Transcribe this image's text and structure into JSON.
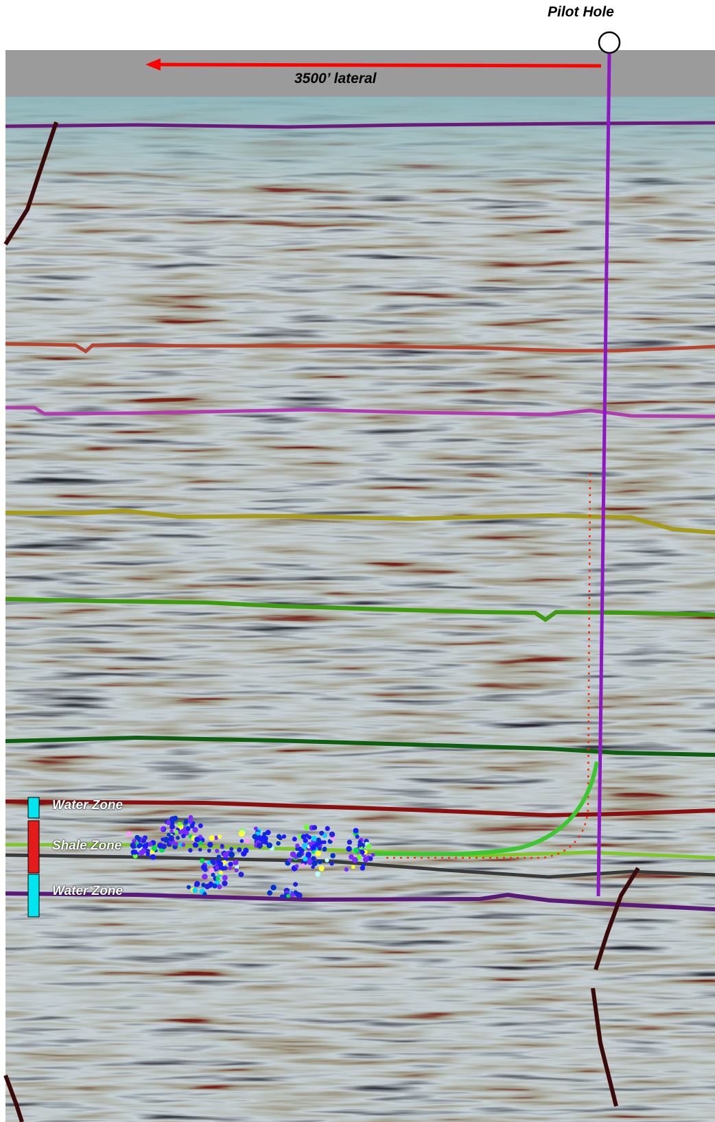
{
  "labels": {
    "pilot_hole": "Pilot Hole",
    "lateral": "3500’ lateral"
  },
  "zones": [
    {
      "label": "Water Zone",
      "color": "#00e5ee"
    },
    {
      "label": "Shale Zone",
      "color": "#e31b1b"
    },
    {
      "label": "Water Zone",
      "color": "#00e5ee"
    }
  ],
  "colors": {
    "pilot_well": "#8e17c4",
    "lateral_arrow": "#ff0000",
    "lateral_well": "#3cc630",
    "planned_path": "#ff2a00",
    "fault": "#3a0a0a",
    "horizons": [
      "#6a1b7a",
      "#b5452f",
      "#b13cb0",
      "#a59a1a",
      "#3f9a10",
      "#0f5e12",
      "#8a1010",
      "#7fc628",
      "#3a3a3a",
      "#5a1a78"
    ],
    "microseismic_events": [
      "#1a1aff",
      "#0033cc",
      "#2222dd",
      "#7a2cff",
      "#00d6ff",
      "#00e04a",
      "#66ff33",
      "#ffff33",
      "#ff99ff",
      "#b7ffff"
    ]
  }
}
